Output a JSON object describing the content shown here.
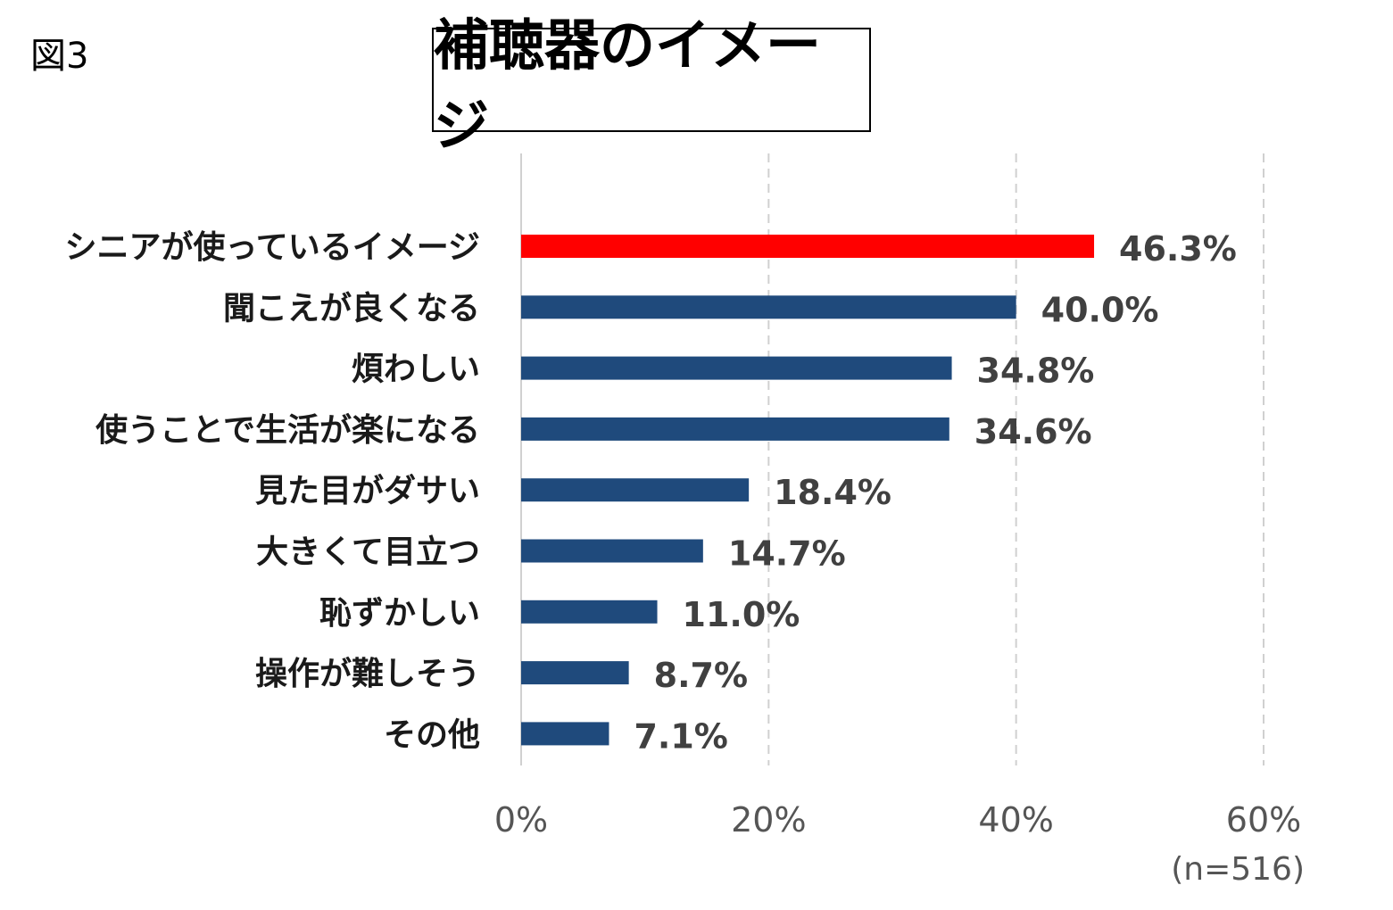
{
  "figure_label": "図3",
  "chart_data": {
    "type": "bar",
    "orientation": "horizontal",
    "title": "補聴器のイメージ",
    "categories": [
      "シニアが使っているイメージ",
      "聞こえが良くなる",
      "煩わしい",
      "使うことで生活が楽になる",
      "見た目がダサい",
      "大きくて目立つ",
      "恥ずかしい",
      "操作が難しそう",
      "その他"
    ],
    "values": [
      46.3,
      40.0,
      34.8,
      34.6,
      18.4,
      14.7,
      11.0,
      8.7,
      7.1
    ],
    "value_labels": [
      "46.3%",
      "40.0%",
      "34.8%",
      "34.6%",
      "18.4%",
      "14.7%",
      "11.0%",
      "8.7%",
      "7.1%"
    ],
    "bar_colors": [
      "#ff0000",
      "#1f4a7c",
      "#1f4a7c",
      "#1f4a7c",
      "#1f4a7c",
      "#1f4a7c",
      "#1f4a7c",
      "#1f4a7c",
      "#1f4a7c"
    ],
    "xlim": [
      0,
      60
    ],
    "x_ticks": [
      0,
      20,
      40,
      60
    ],
    "x_tick_labels": [
      "0%",
      "20%",
      "40%",
      "60%"
    ],
    "grid": "vertical dashed",
    "note": "(n=516)",
    "xlabel": "",
    "ylabel": ""
  }
}
